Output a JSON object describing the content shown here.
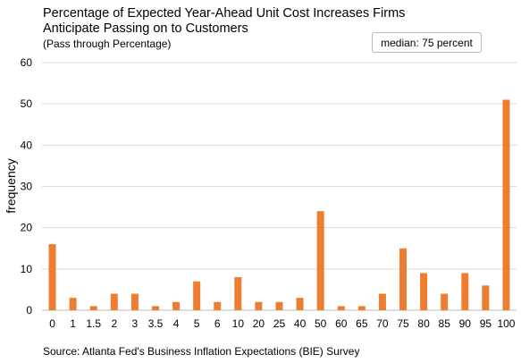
{
  "chart_data": {
    "type": "bar",
    "title_lines": [
      "Percentage of Expected Year-Ahead Unit Cost Increases Firms",
      "Anticipate Passing on to Customers"
    ],
    "subtitle": "(Pass through Percentage)",
    "annotation": "median: 75 percent",
    "ylabel": "frequency",
    "xlabel": "",
    "source": "Source: Atlanta Fed's Business Inflation Expectations (BIE) Survey",
    "ylim": [
      0,
      60
    ],
    "yticks": [
      0,
      10,
      20,
      30,
      40,
      50,
      60
    ],
    "grid": true,
    "bar_color": "#ED7D31",
    "categories": [
      "0",
      "1",
      "1.5",
      "2",
      "3",
      "3.5",
      "4",
      "5",
      "6",
      "10",
      "20",
      "25",
      "40",
      "50",
      "60",
      "65",
      "70",
      "75",
      "80",
      "85",
      "90",
      "95",
      "100"
    ],
    "values": [
      16,
      3,
      1,
      4,
      4,
      1,
      2,
      7,
      2,
      8,
      2,
      2,
      3,
      24,
      1,
      1,
      4,
      15,
      9,
      4,
      9,
      6,
      51
    ]
  }
}
